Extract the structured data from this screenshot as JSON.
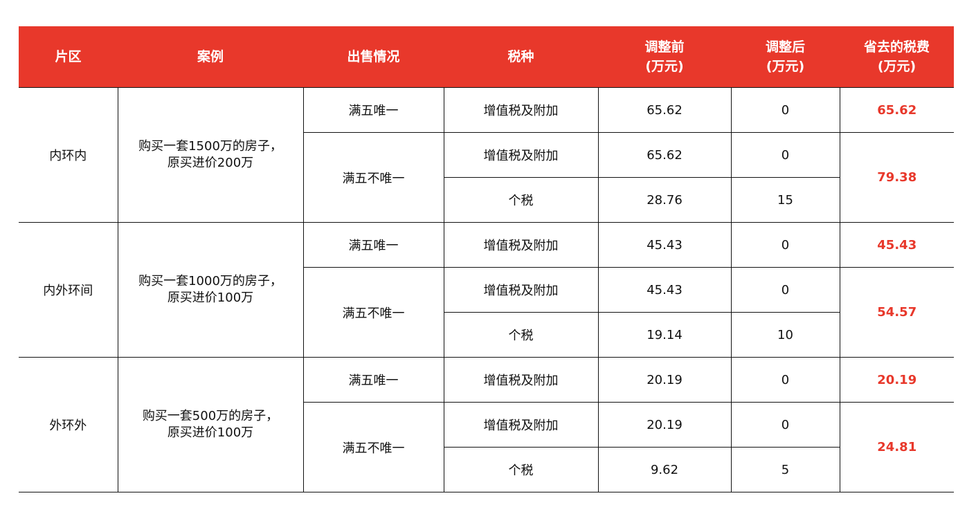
{
  "headers": {
    "region": "片区",
    "case": "案例",
    "sale": "出售情况",
    "tax_type": "税种",
    "before": [
      "调整前",
      "(万元)"
    ],
    "after": [
      "调整后",
      "(万元)"
    ],
    "saved": [
      "省去的税费",
      "(万元)"
    ]
  },
  "groups": [
    {
      "region": "内环内",
      "case": [
        "购买一套1500万的房子，",
        "原买进价200万"
      ],
      "only": {
        "sale": "满五唯一",
        "tax": "增值税及附加",
        "before": "65.62",
        "after": "0",
        "saved": "65.62"
      },
      "not_only": {
        "sale": "满五不唯一",
        "rows": [
          {
            "tax": "增值税及附加",
            "before": "65.62",
            "after": "0"
          },
          {
            "tax": "个税",
            "before": "28.76",
            "after": "15"
          }
        ],
        "saved": "79.38"
      }
    },
    {
      "region": "内外环间",
      "case": [
        "购买一套1000万的房子，",
        "原买进价100万"
      ],
      "only": {
        "sale": "满五唯一",
        "tax": "增值税及附加",
        "before": "45.43",
        "after": "0",
        "saved": "45.43"
      },
      "not_only": {
        "sale": "满五不唯一",
        "rows": [
          {
            "tax": "增值税及附加",
            "before": "45.43",
            "after": "0"
          },
          {
            "tax": "个税",
            "before": "19.14",
            "after": "10"
          }
        ],
        "saved": "54.57"
      }
    },
    {
      "region": "外环外",
      "case": [
        "购买一套500万的房子，",
        "原买进价100万"
      ],
      "only": {
        "sale": "满五唯一",
        "tax": "增值税及附加",
        "before": "20.19",
        "after": "0",
        "saved": "20.19"
      },
      "not_only": {
        "sale": "满五不唯一",
        "rows": [
          {
            "tax": "增值税及附加",
            "before": "20.19",
            "after": "0"
          },
          {
            "tax": "个税",
            "before": "9.62",
            "after": "5"
          }
        ],
        "saved": "24.81"
      }
    }
  ],
  "colors": {
    "header_bg": "#e8382b",
    "saved_text": "#e8382b"
  }
}
